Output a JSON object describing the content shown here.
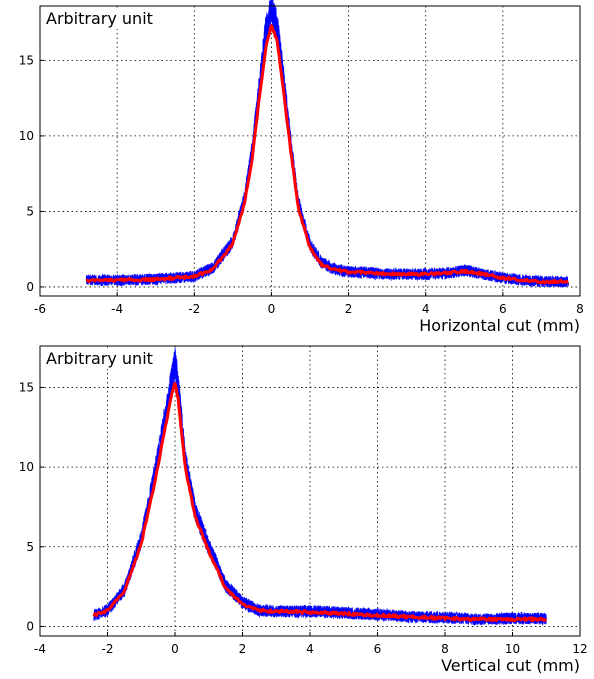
{
  "chart_data": [
    {
      "type": "line",
      "title": "",
      "ylabel": "Arbitrary unit",
      "xlabel": "Horizontal cut (mm)",
      "xlim": [
        -6,
        8
      ],
      "ylim": [
        -0.6,
        18.6
      ],
      "xticks": [
        -6,
        -4,
        -2,
        0,
        2,
        4,
        6,
        8
      ],
      "xtick_labels": [
        "-6",
        "-4",
        "-2",
        "0",
        "2",
        "4",
        "6",
        "8"
      ],
      "yticks": [
        0,
        5,
        10,
        15
      ],
      "ytick_labels": [
        "0",
        "5",
        "10",
        "15"
      ],
      "grid": true,
      "series": [
        {
          "color": "#0000ff",
          "style": "noisy-traces",
          "x": [
            -4.8,
            -4.0,
            -3.0,
            -2.0,
            -1.5,
            -1.0,
            -0.7,
            -0.5,
            -0.3,
            -0.15,
            0.0,
            0.15,
            0.3,
            0.5,
            0.7,
            1.0,
            1.3,
            1.6,
            2.0,
            2.5,
            3.0,
            4.0,
            4.5,
            5.0,
            5.5,
            6.0,
            6.5,
            7.0,
            7.7
          ],
          "values": [
            0.45,
            0.45,
            0.5,
            0.7,
            1.3,
            3.0,
            5.8,
            9.0,
            13.5,
            16.8,
            18.4,
            17.2,
            14.0,
            9.5,
            5.5,
            2.8,
            1.6,
            1.2,
            1.0,
            0.95,
            0.85,
            0.85,
            0.9,
            1.1,
            0.85,
            0.6,
            0.45,
            0.35,
            0.35
          ]
        },
        {
          "color": "#ff0000",
          "style": "mean",
          "x": [
            -4.8,
            -4.0,
            -3.0,
            -2.0,
            -1.5,
            -1.0,
            -0.7,
            -0.5,
            -0.3,
            -0.15,
            0.0,
            0.15,
            0.3,
            0.5,
            0.7,
            1.0,
            1.3,
            1.6,
            2.0,
            2.5,
            3.0,
            4.0,
            4.5,
            5.0,
            5.5,
            6.0,
            6.5,
            7.0,
            7.7
          ],
          "values": [
            0.45,
            0.45,
            0.5,
            0.7,
            1.2,
            2.9,
            5.5,
            8.5,
            12.8,
            15.8,
            17.3,
            16.3,
            13.2,
            9.0,
            5.2,
            2.6,
            1.5,
            1.15,
            1.0,
            0.95,
            0.85,
            0.85,
            0.9,
            1.05,
            0.85,
            0.6,
            0.45,
            0.35,
            0.35
          ]
        }
      ]
    },
    {
      "type": "line",
      "title": "",
      "ylabel": "Arbitrary unit",
      "xlabel": "Vertical cut (mm)",
      "xlim": [
        -4,
        12
      ],
      "ylim": [
        -0.6,
        17.6
      ],
      "xticks": [
        -4,
        -2,
        0,
        2,
        4,
        6,
        8,
        10,
        12
      ],
      "xtick_labels": [
        "-4",
        "-2",
        "0",
        "2",
        "4",
        "6",
        "8",
        "10",
        "12"
      ],
      "yticks": [
        0,
        5,
        10,
        15
      ],
      "ytick_labels": [
        "0",
        "5",
        "10",
        "15"
      ],
      "grid": true,
      "series": [
        {
          "color": "#0000ff",
          "style": "noisy-traces",
          "x": [
            -2.4,
            -2.0,
            -1.5,
            -1.0,
            -0.6,
            -0.3,
            -0.1,
            0.0,
            0.1,
            0.3,
            0.6,
            1.0,
            1.5,
            2.0,
            2.5,
            3.0,
            4.0,
            5.0,
            6.0,
            7.0,
            8.0,
            9.0,
            10.0,
            11.0
          ],
          "values": [
            0.7,
            1.0,
            2.3,
            5.5,
            9.5,
            13.0,
            15.5,
            16.5,
            15.0,
            10.5,
            7.2,
            5.0,
            2.6,
            1.5,
            1.0,
            0.95,
            0.95,
            0.85,
            0.75,
            0.6,
            0.55,
            0.45,
            0.5,
            0.5
          ]
        },
        {
          "color": "#ff0000",
          "style": "mean",
          "x": [
            -2.4,
            -2.0,
            -1.5,
            -1.0,
            -0.6,
            -0.3,
            -0.1,
            0.0,
            0.1,
            0.3,
            0.6,
            1.0,
            1.5,
            2.0,
            2.5,
            3.0,
            4.0,
            5.0,
            6.0,
            7.0,
            8.0,
            9.0,
            10.0,
            11.0
          ],
          "values": [
            0.7,
            1.0,
            2.2,
            5.2,
            9.0,
            12.4,
            14.6,
            15.3,
            14.2,
            10.0,
            6.9,
            4.7,
            2.4,
            1.4,
            1.0,
            0.95,
            0.9,
            0.8,
            0.7,
            0.6,
            0.5,
            0.45,
            0.45,
            0.45
          ]
        }
      ]
    }
  ]
}
